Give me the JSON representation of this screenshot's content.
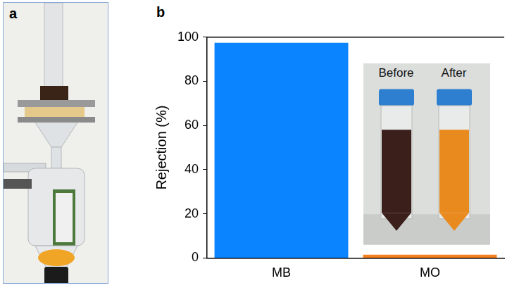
{
  "photo_panel": {
    "label": "a"
  },
  "chart_data": {
    "panel": "b",
    "type": "bar",
    "categories": [
      "MB",
      "MO"
    ],
    "values": [
      97.5,
      1.5
    ],
    "colors": [
      "#0a84ff",
      "#f5801f"
    ],
    "y_label": "Rejection (%)",
    "ylim": [
      0,
      100
    ],
    "yticks": [
      0,
      20,
      40,
      60,
      80,
      100
    ],
    "grid": false
  },
  "inset_photo": {
    "labels": [
      "Before",
      "After"
    ]
  }
}
